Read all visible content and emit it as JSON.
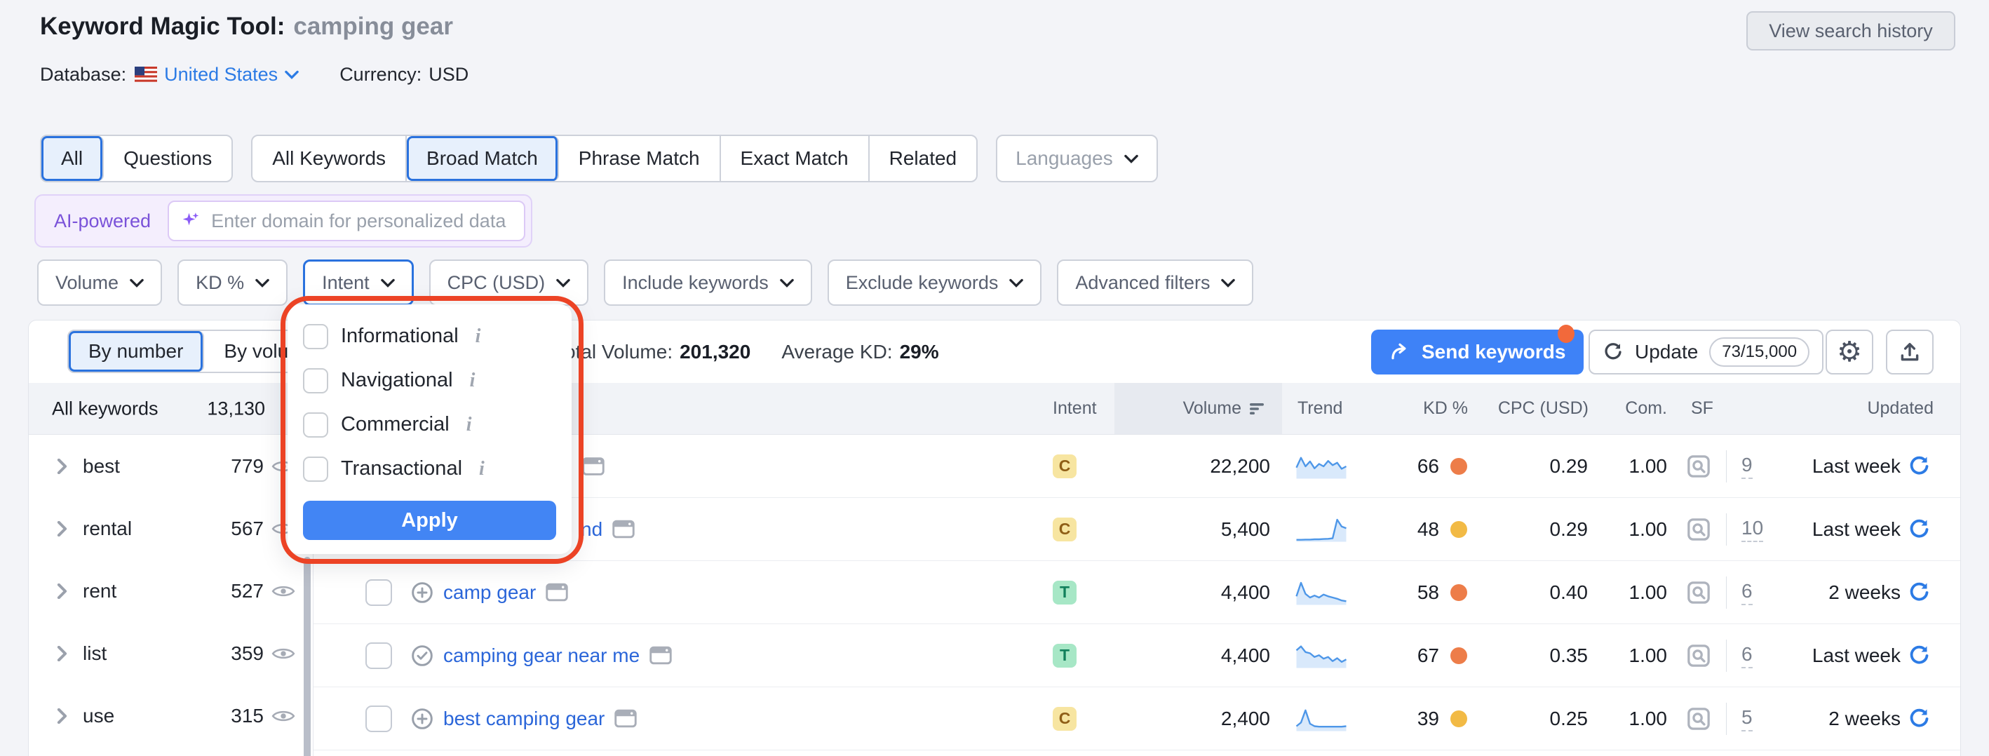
{
  "header": {
    "title": "Keyword Magic Tool:",
    "query": "camping gear",
    "database_label": "Database:",
    "database_value": "United States",
    "currency_label": "Currency:",
    "currency_value": "USD",
    "view_history": "View search history"
  },
  "tabs": {
    "question_group": [
      "All",
      "Questions"
    ],
    "match_group": [
      "All Keywords",
      "Broad Match",
      "Phrase Match",
      "Exact Match",
      "Related"
    ],
    "active_question_tab": "All",
    "active_match_tab": "Broad Match",
    "languages": "Languages"
  },
  "ai_bar": {
    "badge": "AI-powered",
    "placeholder": "Enter domain for personalized data"
  },
  "filters": {
    "items": [
      "Volume",
      "KD %",
      "Intent",
      "CPC (USD)",
      "Include keywords",
      "Exclude keywords",
      "Advanced filters"
    ],
    "active": "Intent"
  },
  "intent_popup": {
    "options": [
      "Informational",
      "Navigational",
      "Commercial",
      "Transactional"
    ],
    "apply": "Apply"
  },
  "toolbar": {
    "by_number": "By number",
    "by_volume": "By volume",
    "total_volume_label": "Total Volume:",
    "total_volume_value": "201,320",
    "average_kd_label": "Average KD:",
    "average_kd_value": "29%",
    "send_keywords": "Send keywords",
    "update": "Update",
    "update_quota": "73/15,000"
  },
  "sidebar": {
    "header_label": "All keywords",
    "header_count": "13,130",
    "groups": [
      {
        "label": "best",
        "count": "779"
      },
      {
        "label": "rental",
        "count": "567"
      },
      {
        "label": "rent",
        "count": "527"
      },
      {
        "label": "list",
        "count": "359"
      },
      {
        "label": "use",
        "count": "315"
      }
    ]
  },
  "table": {
    "columns": {
      "intent": "Intent",
      "volume": "Volume",
      "trend": "Trend",
      "kd": "KD %",
      "cpc": "CPC (USD)",
      "com": "Com.",
      "sf": "SF",
      "updated": "Updated"
    },
    "rows": [
      {
        "keyword": "",
        "intent": "C",
        "volume": "22,200",
        "kd": "66",
        "kd_level": "orange",
        "cpc": "0.29",
        "com": "1.00",
        "sf": "9",
        "updated": "Last week",
        "trend": [
          0.45,
          0.85,
          0.5,
          0.7,
          0.42,
          0.6,
          0.5,
          0.72,
          0.55,
          0.65,
          0.4,
          0.5
        ]
      },
      {
        "keyword": "nd",
        "intent": "C",
        "volume": "5,400",
        "kd": "48",
        "kd_level": "amber",
        "cpc": "0.29",
        "com": "1.00",
        "sf": "10",
        "updated": "Last week",
        "trend": [
          0.08,
          0.08,
          0.09,
          0.09,
          0.1,
          0.1,
          0.11,
          0.12,
          0.14,
          0.9,
          0.62,
          0.55
        ]
      },
      {
        "keyword": "camp gear",
        "intent": "T",
        "volume": "4,400",
        "kd": "58",
        "kd_level": "orange",
        "cpc": "0.40",
        "com": "1.00",
        "sf": "6",
        "updated": "2 weeks",
        "trend": [
          0.35,
          0.9,
          0.45,
          0.3,
          0.38,
          0.3,
          0.42,
          0.35,
          0.3,
          0.25,
          0.18,
          0.15
        ]
      },
      {
        "keyword": "camping gear near me",
        "intent": "T",
        "volume": "4,400",
        "kd": "67",
        "kd_level": "orange",
        "cpc": "0.35",
        "com": "1.00",
        "sf": "6",
        "updated": "Last week",
        "trend": [
          0.72,
          0.88,
          0.65,
          0.6,
          0.45,
          0.52,
          0.38,
          0.45,
          0.28,
          0.4,
          0.25,
          0.35
        ]
      },
      {
        "keyword": "best camping gear",
        "intent": "C",
        "volume": "2,400",
        "kd": "39",
        "kd_level": "amber",
        "cpc": "0.25",
        "com": "1.00",
        "sf": "5",
        "updated": "2 weeks",
        "trend": [
          0.2,
          0.35,
          0.85,
          0.3,
          0.2,
          0.18,
          0.18,
          0.18,
          0.18,
          0.18,
          0.18,
          0.2
        ]
      }
    ]
  },
  "colors": {
    "accent_blue": "#3E82F7",
    "link_blue": "#2C7BE5",
    "keyword_blue": "#2B66D9",
    "annotation_red": "#EC4325",
    "ai_purple": "#7A52D9",
    "intent_commercial_bg": "#F7E5A1",
    "intent_commercial_text": "#8F5E17",
    "intent_transactional_bg": "#A7E7C6",
    "intent_transactional_text": "#12805C",
    "kd_orange": "#ED7D49",
    "kd_amber": "#F2BA45",
    "trend_line": "#4E97E8",
    "trend_fill": "#D9E9FB"
  }
}
